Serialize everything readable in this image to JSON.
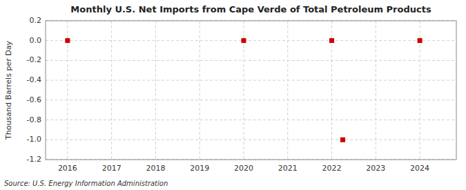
{
  "chart_data": {
    "type": "scatter",
    "title": "Monthly U.S. Net Imports from Cape Verde of Total Petroleum Products",
    "ylabel": "Thousand Barrels per Day",
    "annotations": [
      "Source: U.S. Energy Information Administration"
    ],
    "x": [
      2016.0,
      2020.0,
      2022.0,
      2022.25,
      2024.0
    ],
    "values": [
      0.0,
      0.0,
      0.0,
      -1.0,
      0.0
    ],
    "color": "#cc0000",
    "marker": "square",
    "grid": true,
    "xlim": [
      2015.5,
      2024.83
    ],
    "ylim": [
      -1.2,
      0.2
    ],
    "xticks": [
      2016,
      2017,
      2018,
      2019,
      2020,
      2021,
      2022,
      2023,
      2024
    ],
    "yticks": [
      0.2,
      {
        "value": 0.0,
        "label": "0.0"
      },
      -0.2,
      -0.4,
      -0.6,
      -0.8,
      {
        "value": -1.0,
        "label": "-1.0"
      },
      -1.2
    ]
  }
}
